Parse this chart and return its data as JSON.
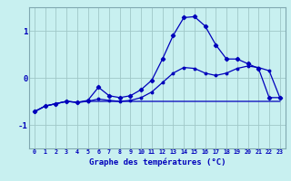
{
  "xlabel": "Graphe des températures (°C)",
  "background_color": "#c8f0f0",
  "grid_color": "#a0c8c8",
  "line_color": "#0000bb",
  "ylim": [
    -1.5,
    1.5
  ],
  "xlim": [
    -0.5,
    23.5
  ],
  "yticks": [
    -1,
    0,
    1
  ],
  "x_ticks": [
    0,
    1,
    2,
    3,
    4,
    5,
    6,
    7,
    8,
    9,
    10,
    11,
    12,
    13,
    14,
    15,
    16,
    17,
    18,
    19,
    20,
    21,
    22,
    23
  ],
  "line_flat_y": [
    -0.72,
    -0.6,
    -0.55,
    -0.5,
    -0.52,
    -0.5,
    -0.5,
    -0.5,
    -0.5,
    -0.5,
    -0.5,
    -0.5,
    -0.5,
    -0.5,
    -0.5,
    -0.5,
    -0.5,
    -0.5,
    -0.5,
    -0.5,
    -0.5,
    -0.5,
    -0.5,
    -0.5
  ],
  "line_med_y": [
    -0.72,
    -0.6,
    -0.55,
    -0.5,
    -0.52,
    -0.5,
    -0.45,
    -0.48,
    -0.5,
    -0.48,
    -0.42,
    -0.3,
    -0.1,
    0.1,
    0.22,
    0.2,
    0.1,
    0.05,
    0.1,
    0.2,
    0.25,
    0.22,
    0.15,
    -0.42
  ],
  "line_peak_y": [
    -0.72,
    -0.6,
    -0.55,
    -0.5,
    -0.52,
    -0.48,
    -0.2,
    -0.38,
    -0.42,
    -0.38,
    -0.25,
    -0.05,
    0.4,
    0.9,
    1.28,
    1.3,
    1.1,
    0.7,
    0.4,
    0.4,
    0.3,
    0.2,
    -0.42,
    -0.42
  ]
}
